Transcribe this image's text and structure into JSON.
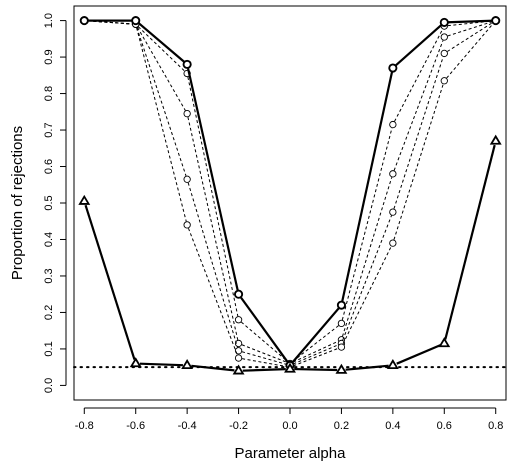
{
  "chart_data": {
    "type": "line",
    "title": "",
    "xlabel": "Parameter alpha",
    "ylabel": "Proportion of rejections",
    "xlim": [
      -0.84,
      0.84
    ],
    "ylim": [
      -0.04,
      1.04
    ],
    "x": [
      -0.8,
      -0.6,
      -0.4,
      -0.2,
      0.0,
      0.2,
      0.4,
      0.6,
      0.8
    ],
    "x_ticks": [
      -0.8,
      -0.6,
      -0.4,
      -0.2,
      0.0,
      0.2,
      0.4,
      0.6,
      0.8
    ],
    "x_tick_labels": [
      "-0.8",
      "-0.6",
      "-0.4",
      "-0.2",
      "0.0",
      "0.2",
      "0.4",
      "0.6",
      "0.8"
    ],
    "y_ticks": [
      0.0,
      0.1,
      0.2,
      0.3,
      0.4,
      0.5,
      0.6,
      0.7,
      0.8,
      0.9,
      1.0
    ],
    "y_tick_labels": [
      "0.0",
      "0.1",
      "0.2",
      "0.3",
      "0.4",
      "0.5",
      "0.6",
      "0.7",
      "0.8",
      "0.9",
      "1.0"
    ],
    "grid": false,
    "legend": "none",
    "reference_line": {
      "y": 0.05,
      "style": "dotted"
    },
    "series": [
      {
        "style": "solid",
        "marker": "circle",
        "values": [
          1.0,
          1.0,
          0.88,
          0.25,
          0.055,
          0.22,
          0.87,
          0.995,
          1.0
        ]
      },
      {
        "style": "solid",
        "marker": "triangle",
        "values": [
          0.505,
          0.06,
          0.055,
          0.04,
          0.045,
          0.042,
          0.055,
          0.115,
          0.67
        ]
      },
      {
        "style": "dashed",
        "marker": "small-circle",
        "values": [
          1.0,
          0.99,
          0.855,
          0.18,
          0.06,
          0.17,
          0.715,
          0.985,
          1.0
        ]
      },
      {
        "style": "dashed",
        "marker": "small-circle",
        "values": [
          1.0,
          0.99,
          0.745,
          0.115,
          0.06,
          0.125,
          0.58,
          0.955,
          1.0
        ]
      },
      {
        "style": "dashed",
        "marker": "small-circle",
        "values": [
          1.0,
          0.99,
          0.565,
          0.095,
          0.055,
          0.115,
          0.475,
          0.91,
          1.0
        ]
      },
      {
        "style": "dashed",
        "marker": "small-circle",
        "values": [
          1.0,
          0.99,
          0.44,
          0.075,
          0.05,
          0.105,
          0.39,
          0.835,
          1.0
        ]
      }
    ]
  }
}
